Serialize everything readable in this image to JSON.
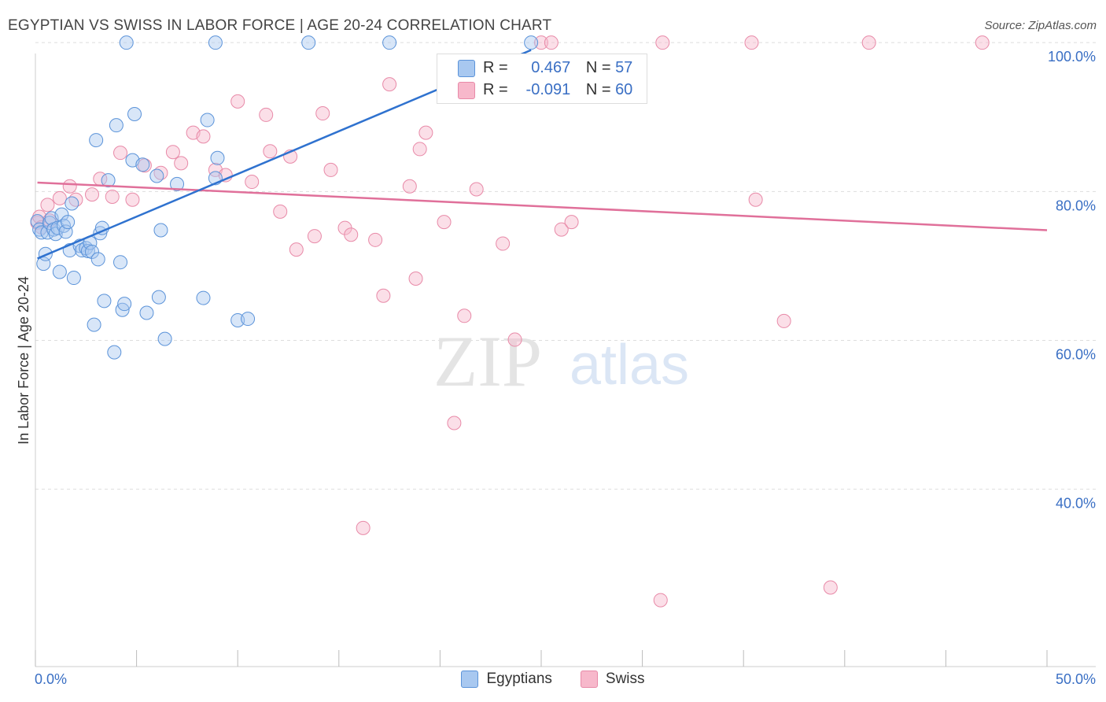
{
  "title": "EGYPTIAN VS SWISS IN LABOR FORCE | AGE 20-24 CORRELATION CHART",
  "source": "Source: ZipAtlas.com",
  "watermark": {
    "zip": "ZIP",
    "atlas": "atlas"
  },
  "colors": {
    "egyptians_fill": "#a8c8f0",
    "egyptians_stroke": "#5b93d9",
    "egyptians_line": "#2f72cf",
    "swiss_fill": "#f7b8cb",
    "swiss_stroke": "#e88aa8",
    "swiss_line": "#e0709a",
    "tick_text": "#3a6fc4",
    "grid": "#dddddd"
  },
  "stats": {
    "egyptians": {
      "r_label": "R =",
      "r": "0.467",
      "n_label": "N =",
      "n": "57"
    },
    "swiss": {
      "r_label": "R =",
      "r": "-0.091",
      "n_label": "N =",
      "n": "60"
    }
  },
  "legend": {
    "egyptians": "Egyptians",
    "swiss": "Swiss"
  },
  "chart_data": {
    "type": "scatter",
    "title": "EGYPTIAN VS SWISS IN LABOR FORCE | AGE 20-24 CORRELATION CHART",
    "xlabel": "",
    "ylabel": "In Labor Force | Age 20-24",
    "xlim": [
      0,
      50
    ],
    "ylim": [
      18.5,
      101.5
    ],
    "x_ticks": [
      {
        "v": 0,
        "label": "0.0%"
      },
      {
        "v": 50,
        "label": "50.0%"
      }
    ],
    "y_ticks": [
      {
        "v": 100,
        "label": "100.0%"
      },
      {
        "v": 80,
        "label": "80.0%"
      },
      {
        "v": 60,
        "label": "60.0%"
      },
      {
        "v": 40,
        "label": "40.0%"
      }
    ],
    "grid": true,
    "legend_position": "bottom",
    "series": [
      {
        "name": "Egyptians",
        "trend": {
          "x": [
            0.1,
            24.5
          ],
          "y": [
            71.0,
            99.0
          ]
        },
        "points": [
          [
            0.1,
            76.0
          ],
          [
            0.2,
            74.9
          ],
          [
            0.3,
            74.5
          ],
          [
            0.4,
            70.3
          ],
          [
            0.5,
            71.6
          ],
          [
            0.6,
            74.5
          ],
          [
            0.7,
            75.8
          ],
          [
            0.8,
            76.4
          ],
          [
            0.9,
            74.9
          ],
          [
            1.0,
            74.3
          ],
          [
            1.1,
            75.1
          ],
          [
            1.2,
            69.2
          ],
          [
            1.3,
            76.9
          ],
          [
            1.4,
            75.4
          ],
          [
            1.5,
            74.6
          ],
          [
            1.6,
            75.9
          ],
          [
            1.7,
            72.1
          ],
          [
            1.8,
            78.4
          ],
          [
            1.9,
            68.4
          ],
          [
            2.2,
            72.7
          ],
          [
            2.3,
            72.1
          ],
          [
            2.5,
            72.4
          ],
          [
            2.6,
            72.0
          ],
          [
            2.7,
            73.1
          ],
          [
            2.8,
            71.9
          ],
          [
            2.9,
            62.1
          ],
          [
            3.0,
            86.9
          ],
          [
            3.1,
            70.9
          ],
          [
            3.2,
            74.4
          ],
          [
            3.3,
            75.1
          ],
          [
            3.4,
            65.3
          ],
          [
            3.6,
            81.5
          ],
          [
            3.9,
            58.4
          ],
          [
            4.0,
            88.9
          ],
          [
            4.2,
            70.5
          ],
          [
            4.3,
            64.1
          ],
          [
            4.4,
            64.9
          ],
          [
            4.5,
            100.0
          ],
          [
            4.8,
            84.2
          ],
          [
            4.9,
            90.4
          ],
          [
            5.3,
            83.6
          ],
          [
            5.5,
            63.7
          ],
          [
            6.0,
            82.1
          ],
          [
            6.1,
            65.8
          ],
          [
            6.2,
            74.8
          ],
          [
            6.4,
            60.2
          ],
          [
            7.0,
            81.0
          ],
          [
            8.3,
            65.7
          ],
          [
            8.5,
            89.6
          ],
          [
            8.9,
            100.0
          ],
          [
            8.9,
            81.8
          ],
          [
            9.0,
            84.5
          ],
          [
            10.0,
            62.7
          ],
          [
            10.5,
            62.9
          ],
          [
            13.5,
            100.0
          ],
          [
            17.5,
            100.0
          ],
          [
            24.5,
            100.0
          ]
        ]
      },
      {
        "name": "Swiss",
        "trend": {
          "x": [
            0.1,
            50.0
          ],
          "y": [
            81.2,
            74.8
          ]
        },
        "points": [
          [
            0.1,
            75.8
          ],
          [
            0.2,
            76.6
          ],
          [
            0.3,
            75.2
          ],
          [
            0.6,
            78.2
          ],
          [
            1.2,
            79.1
          ],
          [
            1.7,
            80.7
          ],
          [
            2.0,
            78.9
          ],
          [
            2.8,
            79.6
          ],
          [
            3.2,
            81.7
          ],
          [
            3.8,
            79.3
          ],
          [
            4.2,
            85.2
          ],
          [
            4.8,
            78.9
          ],
          [
            5.4,
            83.5
          ],
          [
            6.2,
            82.5
          ],
          [
            6.8,
            85.3
          ],
          [
            7.2,
            83.8
          ],
          [
            7.8,
            87.9
          ],
          [
            8.3,
            87.4
          ],
          [
            8.9,
            82.9
          ],
          [
            9.4,
            82.2
          ],
          [
            10.0,
            92.1
          ],
          [
            10.7,
            81.3
          ],
          [
            11.4,
            90.3
          ],
          [
            11.6,
            85.4
          ],
          [
            12.1,
            77.3
          ],
          [
            12.6,
            84.7
          ],
          [
            12.9,
            72.2
          ],
          [
            13.8,
            74.0
          ],
          [
            14.2,
            90.5
          ],
          [
            14.6,
            82.9
          ],
          [
            15.3,
            75.1
          ],
          [
            15.6,
            74.2
          ],
          [
            16.2,
            34.8
          ],
          [
            16.8,
            73.5
          ],
          [
            17.2,
            66.0
          ],
          [
            17.5,
            94.4
          ],
          [
            18.5,
            80.7
          ],
          [
            18.8,
            68.3
          ],
          [
            19.0,
            85.7
          ],
          [
            19.3,
            87.9
          ],
          [
            20.2,
            75.9
          ],
          [
            20.7,
            48.9
          ],
          [
            21.2,
            63.3
          ],
          [
            21.8,
            80.3
          ],
          [
            23.1,
            73.0
          ],
          [
            23.7,
            60.1
          ],
          [
            25.0,
            100.0
          ],
          [
            25.5,
            100.0
          ],
          [
            26.0,
            74.9
          ],
          [
            26.3,
            93.5
          ],
          [
            26.5,
            75.9
          ],
          [
            30.9,
            25.1
          ],
          [
            31.0,
            100.0
          ],
          [
            35.4,
            100.0
          ],
          [
            35.6,
            78.9
          ],
          [
            37.0,
            62.6
          ],
          [
            39.3,
            26.8
          ],
          [
            41.2,
            100.0
          ],
          [
            46.8,
            100.0
          ],
          [
            0.7,
            76.1
          ]
        ]
      }
    ]
  }
}
